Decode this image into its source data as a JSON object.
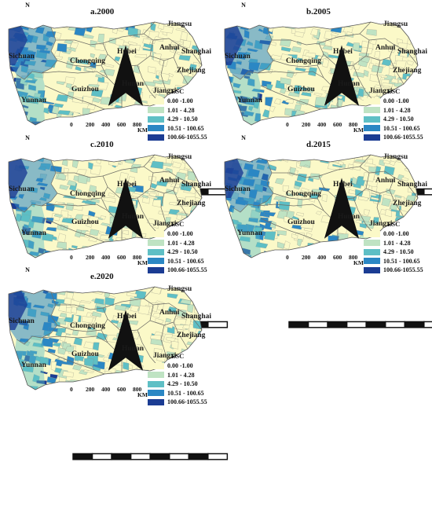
{
  "legend": {
    "title": "ESC",
    "classes": [
      {
        "label": "0.00 -1.00",
        "color": "#fbf9c8"
      },
      {
        "label": "1.01  -  4.28",
        "color": "#bfe3c3"
      },
      {
        "label": "4.29  -  10.50",
        "color": "#5ebfc5"
      },
      {
        "label": "10.51 - 100.65",
        "color": "#2b87c4"
      },
      {
        "label": "100.66-1055.55",
        "color": "#1b3c93"
      }
    ]
  },
  "scalebar": {
    "ticks": [
      "0",
      "200",
      "400",
      "600",
      "800"
    ],
    "unit": "KM"
  },
  "north_label": "N",
  "provinces": [
    "Sichuan",
    "Chongqing",
    "Hubei",
    "Anhui",
    "Jiangsu",
    "Shanghai",
    "Zhejiang",
    "Jiangxi",
    "Hunan",
    "Guizhou",
    "Yunnan"
  ],
  "panels": [
    {
      "title": "a.2000"
    },
    {
      "title": "b.2005"
    },
    {
      "title": "c.2010"
    },
    {
      "title": "d.2015"
    },
    {
      "title": "e.2020"
    }
  ]
}
